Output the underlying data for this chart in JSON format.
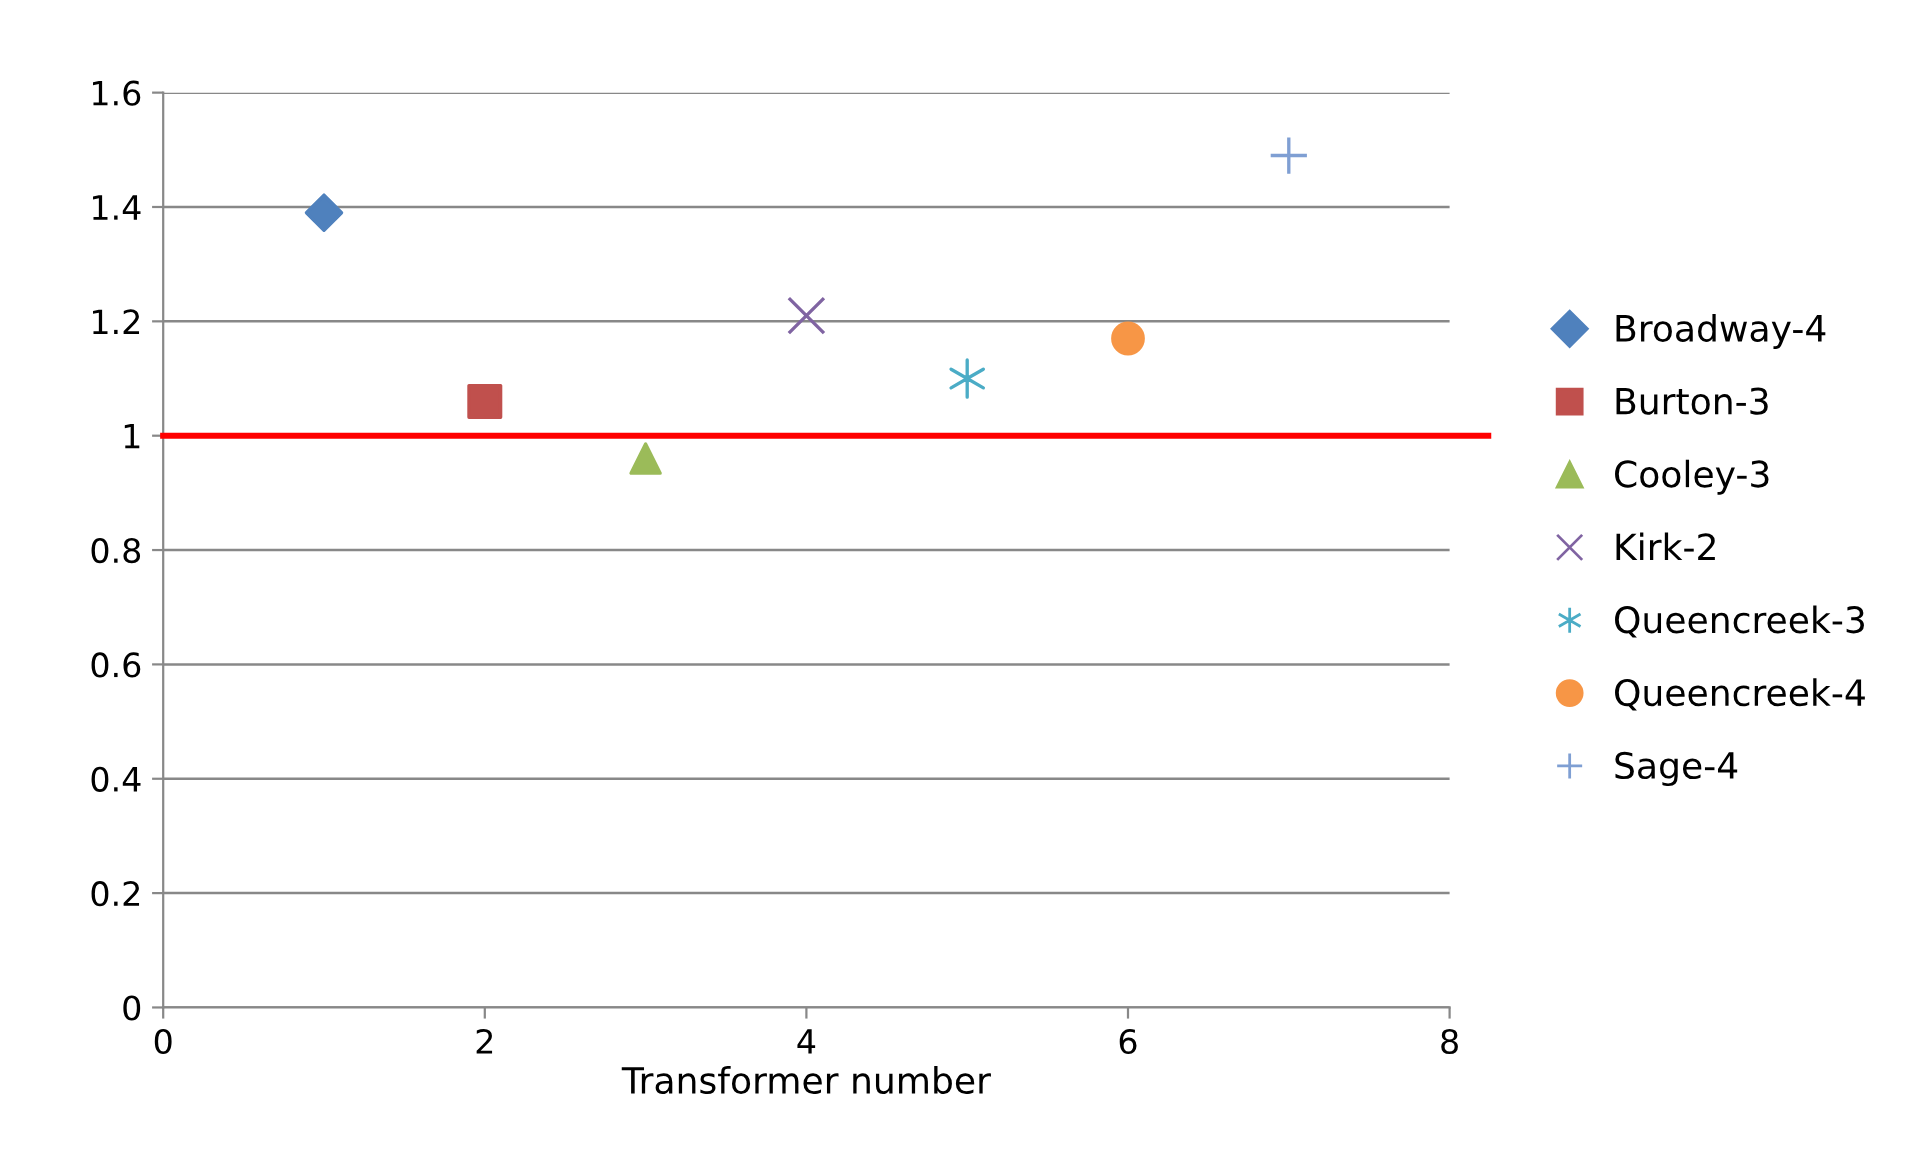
{
  "chart_data": {
    "type": "scatter",
    "xlabel": "Transformer number",
    "xlim": [
      0,
      8
    ],
    "xticks": [
      0,
      2,
      4,
      6,
      8
    ],
    "ylim": [
      0,
      1.6
    ],
    "yticks": [
      0,
      0.2,
      0.4,
      0.6,
      0.8,
      1,
      1.2,
      1.4,
      1.6
    ],
    "grid": "y",
    "legend": "right",
    "ref_lines": [
      {
        "axis": "y",
        "value": 1,
        "color": "#ff0000"
      }
    ],
    "series": [
      {
        "name": "Broadway-4",
        "color": "#4f81bd",
        "marker": "diamond",
        "x": [
          1
        ],
        "values": [
          1.39
        ]
      },
      {
        "name": "Burton-3",
        "color": "#c0504d",
        "marker": "square",
        "x": [
          2
        ],
        "values": [
          1.06
        ]
      },
      {
        "name": "Cooley-3",
        "color": "#9bbb59",
        "marker": "triangle",
        "x": [
          3
        ],
        "values": [
          0.96
        ]
      },
      {
        "name": "Kirk-2",
        "color": "#8064a2",
        "marker": "x",
        "x": [
          4
        ],
        "values": [
          1.21
        ]
      },
      {
        "name": "Queencreek-3",
        "color": "#4bacc6",
        "x": [
          5
        ],
        "values": [
          1.1
        ]
      },
      {
        "name": "Queencreek-4",
        "color": "#f79646",
        "marker": "circle",
        "x": [
          6
        ],
        "values": [
          1.17
        ]
      },
      {
        "name": "Sage-4",
        "color": "#7f9fd3",
        "marker": "cross",
        "x": [
          7
        ],
        "values": [
          1.49
        ]
      }
    ]
  }
}
